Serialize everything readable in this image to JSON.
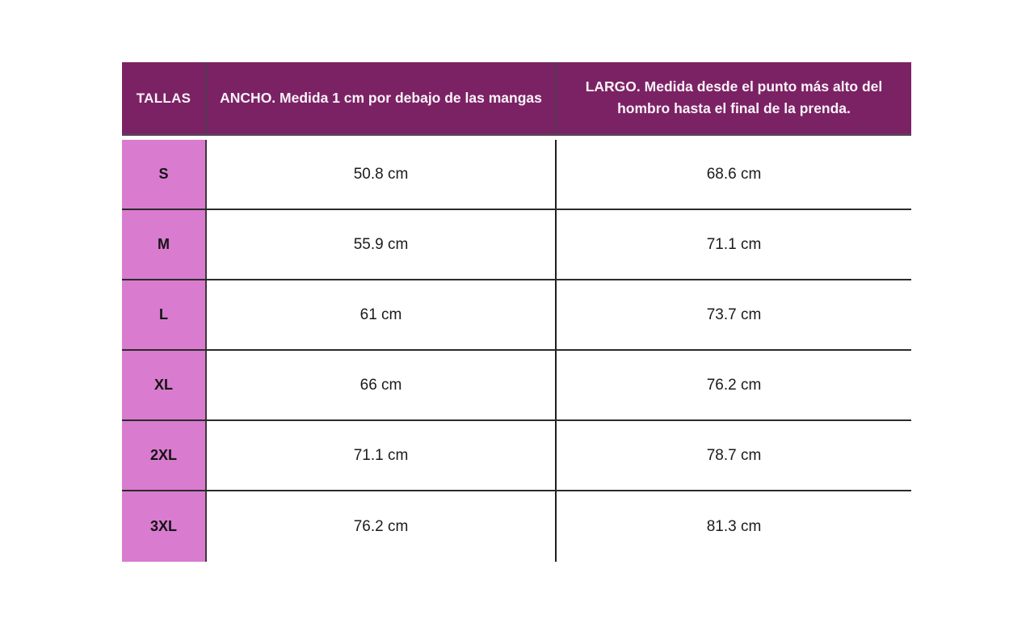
{
  "table": {
    "header": {
      "tallas": "TALLAS",
      "ancho": "ANCHO. Medida 1 cm por debajo de las mangas",
      "largo": "LARGO. Medida desde el punto más alto del hombro hasta el final de la prenda."
    },
    "rows": [
      {
        "size": "S",
        "ancho": "50.8 cm",
        "largo": "68.6 cm"
      },
      {
        "size": "M",
        "ancho": "55.9 cm",
        "largo": "71.1 cm"
      },
      {
        "size": "L",
        "ancho": "61 cm",
        "largo": "73.7 cm"
      },
      {
        "size": "XL",
        "ancho": "66 cm",
        "largo": "76.2 cm"
      },
      {
        "size": "2XL",
        "ancho": "71.1 cm",
        "largo": "78.7 cm"
      },
      {
        "size": "3XL",
        "ancho": "76.2 cm",
        "largo": "81.3 cm"
      }
    ],
    "colors": {
      "header_bg": "#7B2264",
      "header_text": "#FAF3F8",
      "size_cell_bg": "#D97BCF",
      "grid_line": "#2B2B2B",
      "body_text": "#1B1B1B",
      "page_bg": "#FFFFFF"
    }
  },
  "chart_data": {
    "type": "table",
    "title": "",
    "columns": [
      "TALLAS",
      "ANCHO. Medida 1 cm por debajo de las mangas",
      "LARGO. Medida desde el punto más alto del hombro hasta el final de la prenda."
    ],
    "rows": [
      [
        "S",
        "50.8 cm",
        "68.6 cm"
      ],
      [
        "M",
        "55.9 cm",
        "71.1 cm"
      ],
      [
        "L",
        "61 cm",
        "73.7 cm"
      ],
      [
        "XL",
        "66 cm",
        "76.2 cm"
      ],
      [
        "2XL",
        "71.1 cm",
        "78.7 cm"
      ],
      [
        "3XL",
        "76.2 cm",
        "81.3 cm"
      ]
    ],
    "units": "cm",
    "layout": {
      "header_position": "top",
      "grid": "horizontal-and-column-separators",
      "outer_border": false
    }
  }
}
